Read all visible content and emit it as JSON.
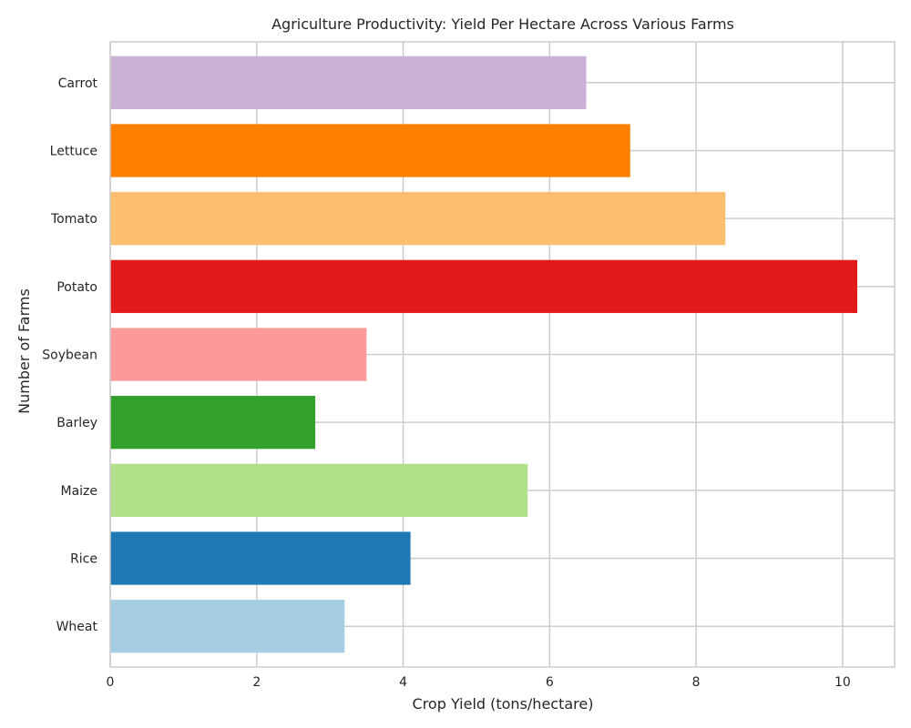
{
  "chart_data": {
    "type": "bar",
    "orientation": "horizontal",
    "title": "Agriculture Productivity: Yield Per Hectare Across Various Farms",
    "xlabel": "Crop Yield (tons/hectare)",
    "ylabel": "Number of Farms",
    "categories": [
      "Wheat",
      "Rice",
      "Maize",
      "Barley",
      "Soybean",
      "Potato",
      "Tomato",
      "Lettuce",
      "Carrot"
    ],
    "values": [
      3.2,
      4.1,
      5.7,
      2.8,
      3.5,
      10.2,
      8.4,
      7.1,
      6.5
    ],
    "colors": [
      "#a6cee3",
      "#1f78b4",
      "#b2df8a",
      "#33a02c",
      "#fb9a99",
      "#e31a1c",
      "#fdbf6f",
      "#ff7f00",
      "#cab2d6"
    ],
    "xlim": [
      0,
      10.71
    ],
    "xticks": [
      0,
      2,
      4,
      6,
      8,
      10
    ],
    "grid": true,
    "legend": "none"
  }
}
